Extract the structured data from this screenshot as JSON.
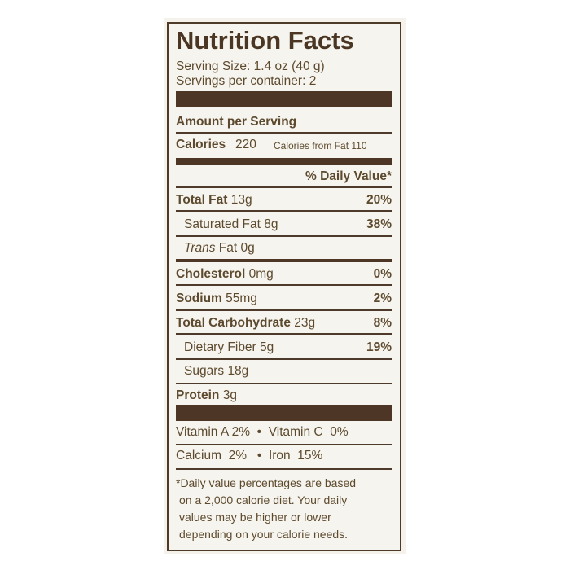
{
  "title": "Nutrition Facts",
  "serving_size": "Serving Size: 1.4 oz (40 g)",
  "servings_per_container": "Servings per container: 2",
  "amount_per_serving": "Amount per Serving",
  "calories": {
    "label": "Calories",
    "value": "220",
    "from_fat": "Calories from Fat 110"
  },
  "daily_value_header": "% Daily Value*",
  "nutrients": [
    {
      "label": "Total Fat",
      "amount": "13g",
      "dv": "20%"
    },
    {
      "label": "Saturated Fat",
      "amount": "8g",
      "dv": "38%"
    },
    {
      "label": "Trans",
      "amount": "Fat  0g",
      "dv": ""
    },
    {
      "label": "Cholesterol",
      "amount": "0mg",
      "dv": "0%"
    },
    {
      "label": "Sodium",
      "amount": "55mg",
      "dv": "2%"
    },
    {
      "label": "Total Carbohydrate",
      "amount": "23g",
      "dv": "8%"
    },
    {
      "label": "Dietary Fiber",
      "amount": "5g",
      "dv": "19%"
    },
    {
      "label": "Sugars",
      "amount": "18g",
      "dv": ""
    },
    {
      "label": "Protein",
      "amount": "3g",
      "dv": ""
    }
  ],
  "vitamins_row1": "Vitamin A 2%  •  Vitamin C  0%",
  "vitamins_row2": "Calcium  2%   •  Iron  15%",
  "footnote": [
    "*Daily value percentages are based",
    "on a 2,000 calorie diet. Your daily",
    "values may be higher or lower",
    "depending on your calorie needs."
  ],
  "colors": {
    "ink": "#5d4a2e",
    "bars": "#4e3626",
    "background": "#f6f4ee"
  }
}
